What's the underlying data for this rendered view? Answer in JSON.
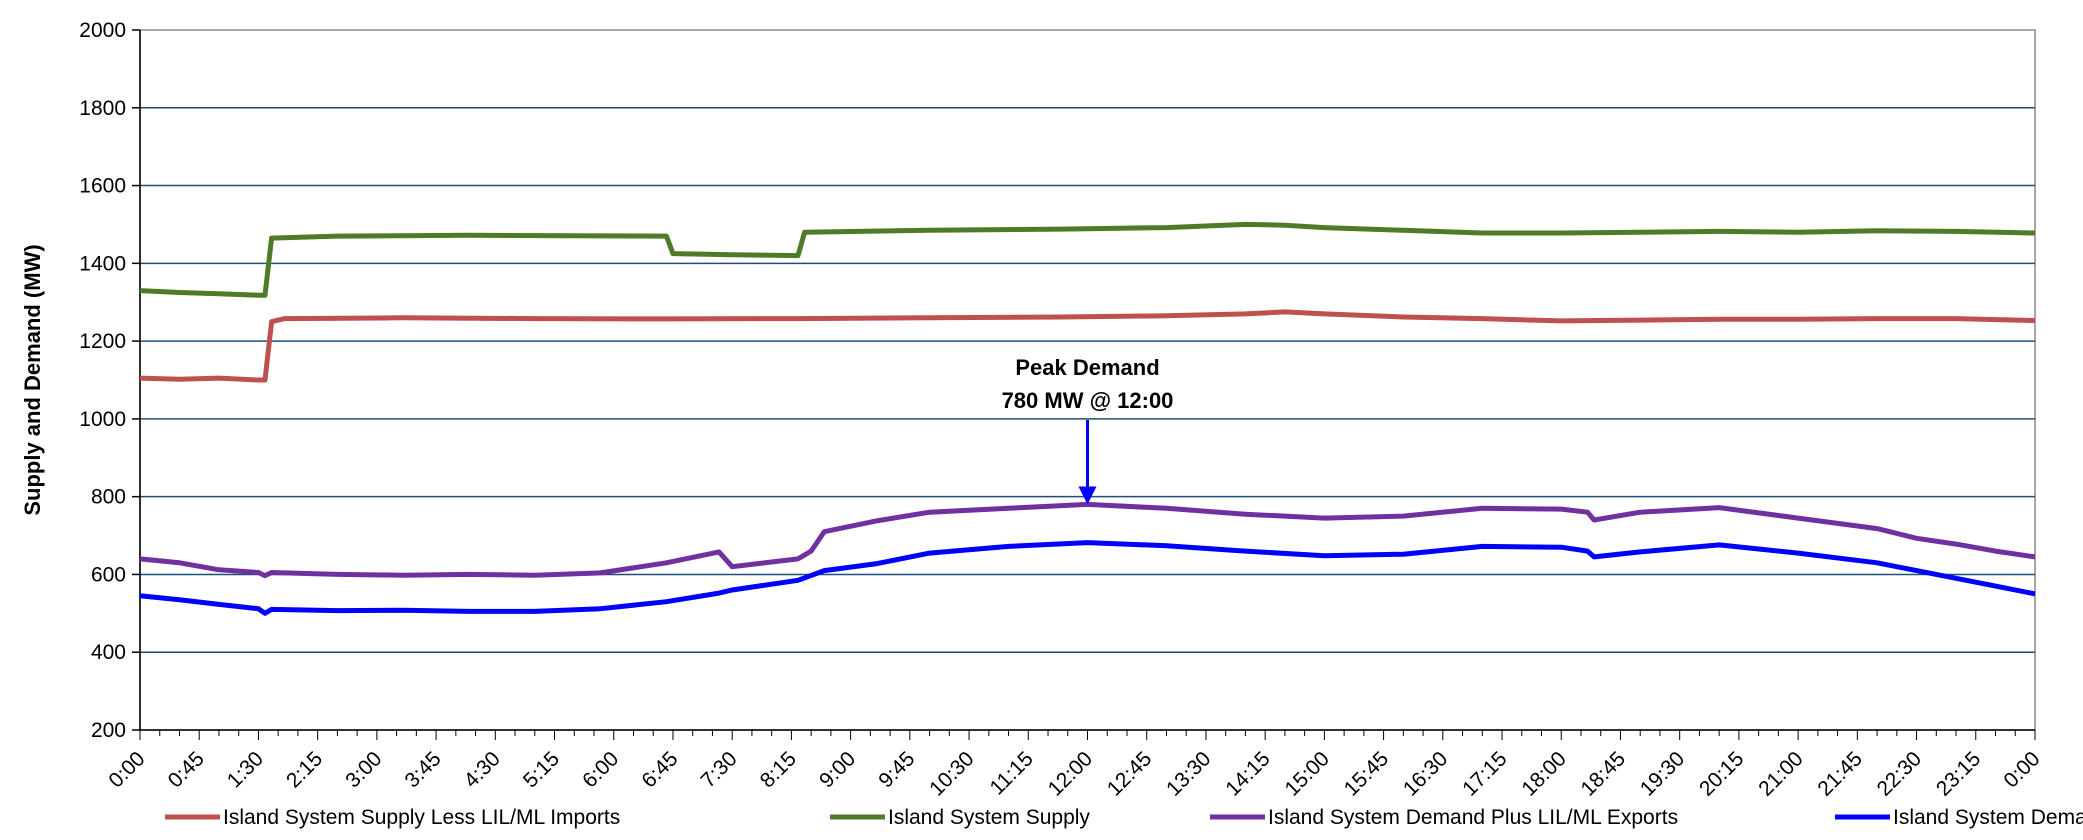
{
  "chart_data": {
    "type": "line",
    "ylabel": "Supply and Demand (MW)",
    "xlabel": "",
    "ylim": [
      200,
      2000
    ],
    "yticks": [
      200,
      400,
      600,
      800,
      1000,
      1200,
      1400,
      1600,
      1800,
      2000
    ],
    "x_tick_labels": [
      "0:00",
      "0:45",
      "1:30",
      "2:15",
      "3:00",
      "3:45",
      "4:30",
      "5:15",
      "6:00",
      "6:45",
      "7:30",
      "8:15",
      "9:00",
      "9:45",
      "10:30",
      "11:15",
      "12:00",
      "12:45",
      "13:30",
      "14:15",
      "15:00",
      "15:45",
      "16:30",
      "17:15",
      "18:00",
      "18:45",
      "19:30",
      "20:15",
      "21:00",
      "21:45",
      "22:30",
      "23:15",
      "0:00"
    ],
    "x_minutes": [
      0,
      60,
      90,
      95,
      100,
      200,
      400,
      405,
      450,
      500,
      600,
      660,
      720,
      780,
      840,
      870,
      900,
      960,
      1020,
      1080,
      1140,
      1200,
      1260,
      1320,
      1380,
      1440
    ],
    "gridlines": "horizontal",
    "legend_position": "bottom",
    "annotation": {
      "line1": "Peak Demand",
      "line2": "780 MW @ 12:00",
      "x_minutes": 720,
      "y": 780
    },
    "series": [
      {
        "name": "Island System Supply Less LIL/ML Imports",
        "color": "#c0504d",
        "points": [
          [
            0,
            1105
          ],
          [
            30,
            1102
          ],
          [
            60,
            1105
          ],
          [
            90,
            1100
          ],
          [
            95,
            1100
          ],
          [
            100,
            1250
          ],
          [
            110,
            1258
          ],
          [
            200,
            1260
          ],
          [
            300,
            1258
          ],
          [
            400,
            1257
          ],
          [
            500,
            1258
          ],
          [
            600,
            1260
          ],
          [
            700,
            1262
          ],
          [
            780,
            1265
          ],
          [
            840,
            1270
          ],
          [
            870,
            1275
          ],
          [
            900,
            1270
          ],
          [
            960,
            1262
          ],
          [
            1020,
            1258
          ],
          [
            1080,
            1252
          ],
          [
            1140,
            1254
          ],
          [
            1200,
            1256
          ],
          [
            1260,
            1256
          ],
          [
            1320,
            1258
          ],
          [
            1380,
            1258
          ],
          [
            1440,
            1253
          ]
        ]
      },
      {
        "name": "Island System Supply",
        "color": "#4f7a28",
        "points": [
          [
            0,
            1330
          ],
          [
            30,
            1325
          ],
          [
            60,
            1322
          ],
          [
            90,
            1318
          ],
          [
            95,
            1318
          ],
          [
            100,
            1465
          ],
          [
            150,
            1470
          ],
          [
            250,
            1472
          ],
          [
            400,
            1470
          ],
          [
            405,
            1425
          ],
          [
            450,
            1422
          ],
          [
            500,
            1420
          ],
          [
            505,
            1480
          ],
          [
            600,
            1485
          ],
          [
            700,
            1488
          ],
          [
            780,
            1492
          ],
          [
            840,
            1500
          ],
          [
            870,
            1498
          ],
          [
            900,
            1492
          ],
          [
            960,
            1485
          ],
          [
            1020,
            1478
          ],
          [
            1080,
            1478
          ],
          [
            1140,
            1480
          ],
          [
            1200,
            1482
          ],
          [
            1260,
            1480
          ],
          [
            1320,
            1484
          ],
          [
            1380,
            1482
          ],
          [
            1440,
            1478
          ]
        ]
      },
      {
        "name": "Island System Demand Plus LIL/ML Exports",
        "color": "#7030a0",
        "points": [
          [
            0,
            640
          ],
          [
            30,
            630
          ],
          [
            60,
            612
          ],
          [
            90,
            605
          ],
          [
            95,
            597
          ],
          [
            100,
            605
          ],
          [
            150,
            600
          ],
          [
            200,
            598
          ],
          [
            250,
            600
          ],
          [
            300,
            598
          ],
          [
            350,
            604
          ],
          [
            400,
            630
          ],
          [
            440,
            658
          ],
          [
            450,
            620
          ],
          [
            500,
            640
          ],
          [
            510,
            660
          ],
          [
            520,
            710
          ],
          [
            560,
            738
          ],
          [
            600,
            760
          ],
          [
            660,
            770
          ],
          [
            720,
            780
          ],
          [
            780,
            770
          ],
          [
            840,
            755
          ],
          [
            900,
            745
          ],
          [
            960,
            750
          ],
          [
            1020,
            770
          ],
          [
            1080,
            768
          ],
          [
            1100,
            760
          ],
          [
            1105,
            740
          ],
          [
            1140,
            760
          ],
          [
            1200,
            772
          ],
          [
            1260,
            745
          ],
          [
            1320,
            718
          ],
          [
            1350,
            693
          ],
          [
            1380,
            678
          ],
          [
            1410,
            660
          ],
          [
            1440,
            645
          ]
        ]
      },
      {
        "name": "Island System Demand",
        "color": "#0000ff",
        "points": [
          [
            0,
            545
          ],
          [
            30,
            535
          ],
          [
            60,
            523
          ],
          [
            90,
            512
          ],
          [
            95,
            500
          ],
          [
            100,
            510
          ],
          [
            150,
            507
          ],
          [
            200,
            508
          ],
          [
            250,
            505
          ],
          [
            300,
            505
          ],
          [
            350,
            512
          ],
          [
            400,
            530
          ],
          [
            440,
            552
          ],
          [
            450,
            560
          ],
          [
            500,
            585
          ],
          [
            520,
            610
          ],
          [
            560,
            628
          ],
          [
            600,
            655
          ],
          [
            660,
            672
          ],
          [
            720,
            682
          ],
          [
            780,
            674
          ],
          [
            840,
            660
          ],
          [
            900,
            648
          ],
          [
            960,
            652
          ],
          [
            1020,
            672
          ],
          [
            1080,
            670
          ],
          [
            1100,
            660
          ],
          [
            1105,
            645
          ],
          [
            1140,
            658
          ],
          [
            1200,
            676
          ],
          [
            1260,
            655
          ],
          [
            1320,
            630
          ],
          [
            1350,
            610
          ],
          [
            1380,
            590
          ],
          [
            1410,
            570
          ],
          [
            1440,
            550
          ]
        ]
      }
    ]
  }
}
